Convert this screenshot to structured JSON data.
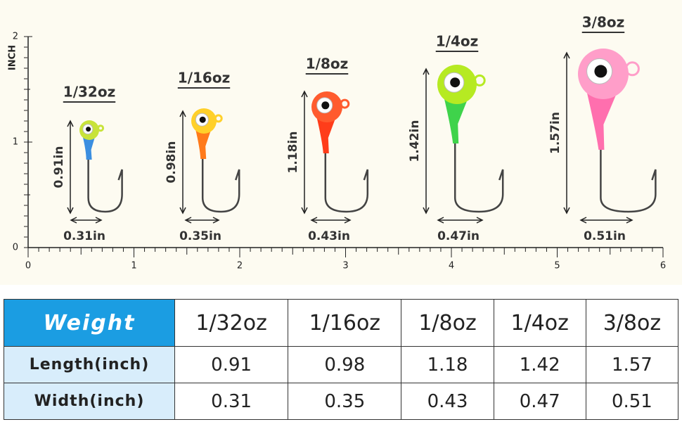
{
  "ruler": {
    "unit": "INCH",
    "x_labels": [
      "0",
      "1",
      "2",
      "3",
      "4",
      "5",
      "6"
    ],
    "y_labels": [
      "0",
      "1",
      "2"
    ]
  },
  "jigs": [
    {
      "weight": "1/32oz",
      "length": "0.91in",
      "width": "0.31in"
    },
    {
      "weight": "1/16oz",
      "length": "0.98in",
      "width": "0.35in"
    },
    {
      "weight": "1/8oz",
      "length": "1.18in",
      "width": "0.43in"
    },
    {
      "weight": "1/4oz",
      "length": "1.42in",
      "width": "0.47in"
    },
    {
      "weight": "3/8oz",
      "length": "1.57in",
      "width": "0.51in"
    }
  ],
  "table": {
    "header": [
      "Weight",
      "1/32oz",
      "1/16oz",
      "1/8oz",
      "1/4oz",
      "3/8oz"
    ],
    "rows": [
      [
        "Length(inch)",
        "0.91",
        "0.98",
        "1.18",
        "1.42",
        "1.57"
      ],
      [
        "Width(inch)",
        "0.31",
        "0.35",
        "0.43",
        "0.47",
        "0.51"
      ]
    ]
  }
}
